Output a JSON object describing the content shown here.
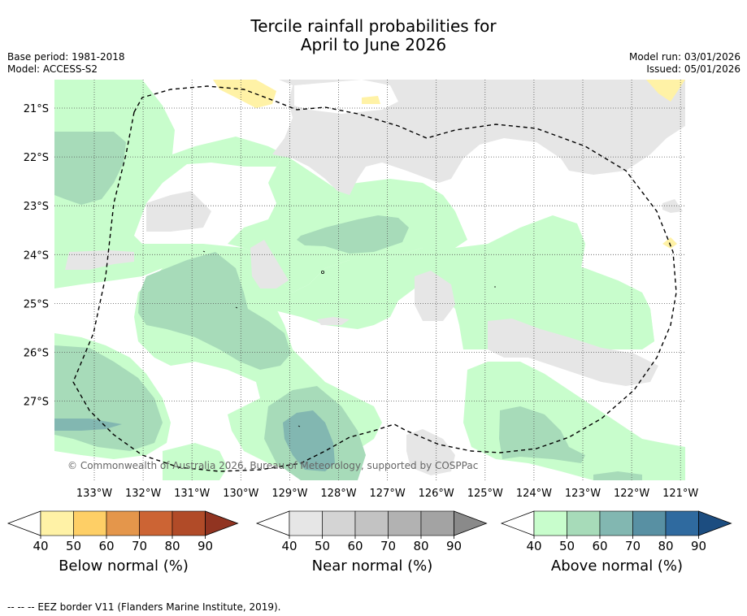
{
  "title": {
    "line1": "Tercile rainfall probabilities for",
    "line2": "April to June 2026"
  },
  "meta": {
    "base_period": "Base period: 1981-2018",
    "model": "Model: ACCESS-S2",
    "model_run": "Model run: 03/01/2026",
    "issued": "Issued: 05/01/2026"
  },
  "map": {
    "lon_labels": [
      "133°W",
      "132°W",
      "131°W",
      "130°W",
      "129°W",
      "128°W",
      "127°W",
      "126°W",
      "125°W",
      "124°W",
      "123°W",
      "122°W",
      "121°W"
    ],
    "lat_labels": [
      "21°S",
      "22°S",
      "23°S",
      "24°S",
      "25°S",
      "26°S",
      "27°S"
    ],
    "copyright": "© Commonwealth of Australia 2026, Bureau of Meteorology, supported by COSPPac"
  },
  "colorbars": {
    "ticks": [
      "40",
      "50",
      "60",
      "70",
      "80",
      "90"
    ],
    "below": {
      "label": "Below normal (%)",
      "colors": [
        "#ffffff",
        "#fff2a6",
        "#fecf66",
        "#e4964b",
        "#cc6434",
        "#b14b28",
        "#913421"
      ]
    },
    "near": {
      "label": "Near normal (%)",
      "colors": [
        "#ffffff",
        "#e6e6e6",
        "#d4d4d4",
        "#c3c3c3",
        "#b2b2b2",
        "#a3a3a3",
        "#8a8a8a"
      ]
    },
    "above": {
      "label": "Above normal (%)",
      "colors": [
        "#ffffff",
        "#c8fdcc",
        "#a7dbb9",
        "#82b7b1",
        "#5890a3",
        "#2f6a9f",
        "#1c4d80"
      ]
    }
  },
  "footnote": "--  --  -- EEZ border V11 (Flanders Marine Institute, 2019)."
}
